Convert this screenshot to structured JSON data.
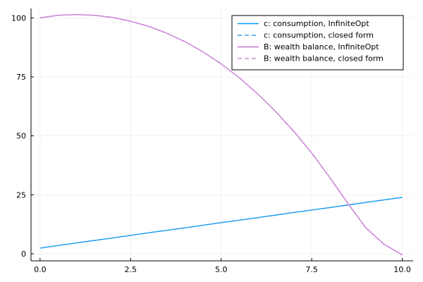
{
  "chart_data": {
    "type": "line",
    "title": "",
    "xlabel": "",
    "ylabel": "",
    "xlim": [
      -0.25,
      10.3
    ],
    "ylim": [
      -3,
      104
    ],
    "x_ticks": [
      0,
      2.5,
      5,
      7.5,
      10
    ],
    "x_tick_labels": [
      "0.0",
      "2.5",
      "5.0",
      "7.5",
      "10.0"
    ],
    "y_ticks": [
      0,
      25,
      50,
      75,
      100
    ],
    "y_tick_labels": [
      "0",
      "25",
      "50",
      "75",
      "100"
    ],
    "grid": true,
    "legend_position": "top-right",
    "series": [
      {
        "name": "c: consumption, InfiniteOpt",
        "color": "#009AFA",
        "dash": "solid",
        "x": [
          0,
          1,
          2,
          3,
          4,
          5,
          6,
          7,
          8,
          9,
          10
        ],
        "y": [
          2.4,
          4.6,
          6.7,
          8.9,
          11.0,
          13.2,
          15.3,
          17.5,
          19.6,
          21.8,
          23.9
        ]
      },
      {
        "name": "c: consumption, closed form",
        "color": "#3DA0E8",
        "dash": "dashed",
        "x": [
          0,
          1,
          2,
          3,
          4,
          5,
          6,
          7,
          8,
          9,
          10
        ],
        "y": [
          2.4,
          4.6,
          6.7,
          8.9,
          11.0,
          13.2,
          15.3,
          17.5,
          19.6,
          21.8,
          23.9
        ]
      },
      {
        "name": "B: wealth balance, InfiniteOpt",
        "color": "#C271D2",
        "dash": "solid",
        "x": [
          0,
          0.5,
          1,
          1.5,
          2,
          2.5,
          3,
          3.5,
          4,
          4.5,
          5,
          5.5,
          6,
          6.5,
          7,
          7.5,
          8,
          8.5,
          9,
          9.5,
          10
        ],
        "y": [
          100.0,
          101.1,
          101.4,
          101.1,
          100.2,
          98.6,
          96.4,
          93.5,
          89.9,
          85.6,
          80.5,
          74.6,
          67.9,
          60.4,
          52.0,
          42.7,
          32.3,
          21.3,
          10.9,
          4.0,
          -0.5
        ]
      },
      {
        "name": "B: wealth balance, closed form",
        "color": "#D08BDB",
        "dash": "dashed",
        "x": [
          0,
          0.5,
          1,
          1.5,
          2,
          2.5,
          3,
          3.5,
          4,
          4.5,
          5,
          5.5,
          6,
          6.5,
          7,
          7.5,
          8,
          8.5,
          9,
          9.5,
          10
        ],
        "y": [
          100.0,
          101.1,
          101.4,
          101.1,
          100.2,
          98.6,
          96.4,
          93.5,
          89.9,
          85.6,
          80.5,
          74.6,
          67.9,
          60.4,
          52.0,
          42.7,
          32.3,
          21.3,
          10.9,
          4.0,
          -0.5
        ]
      }
    ]
  }
}
